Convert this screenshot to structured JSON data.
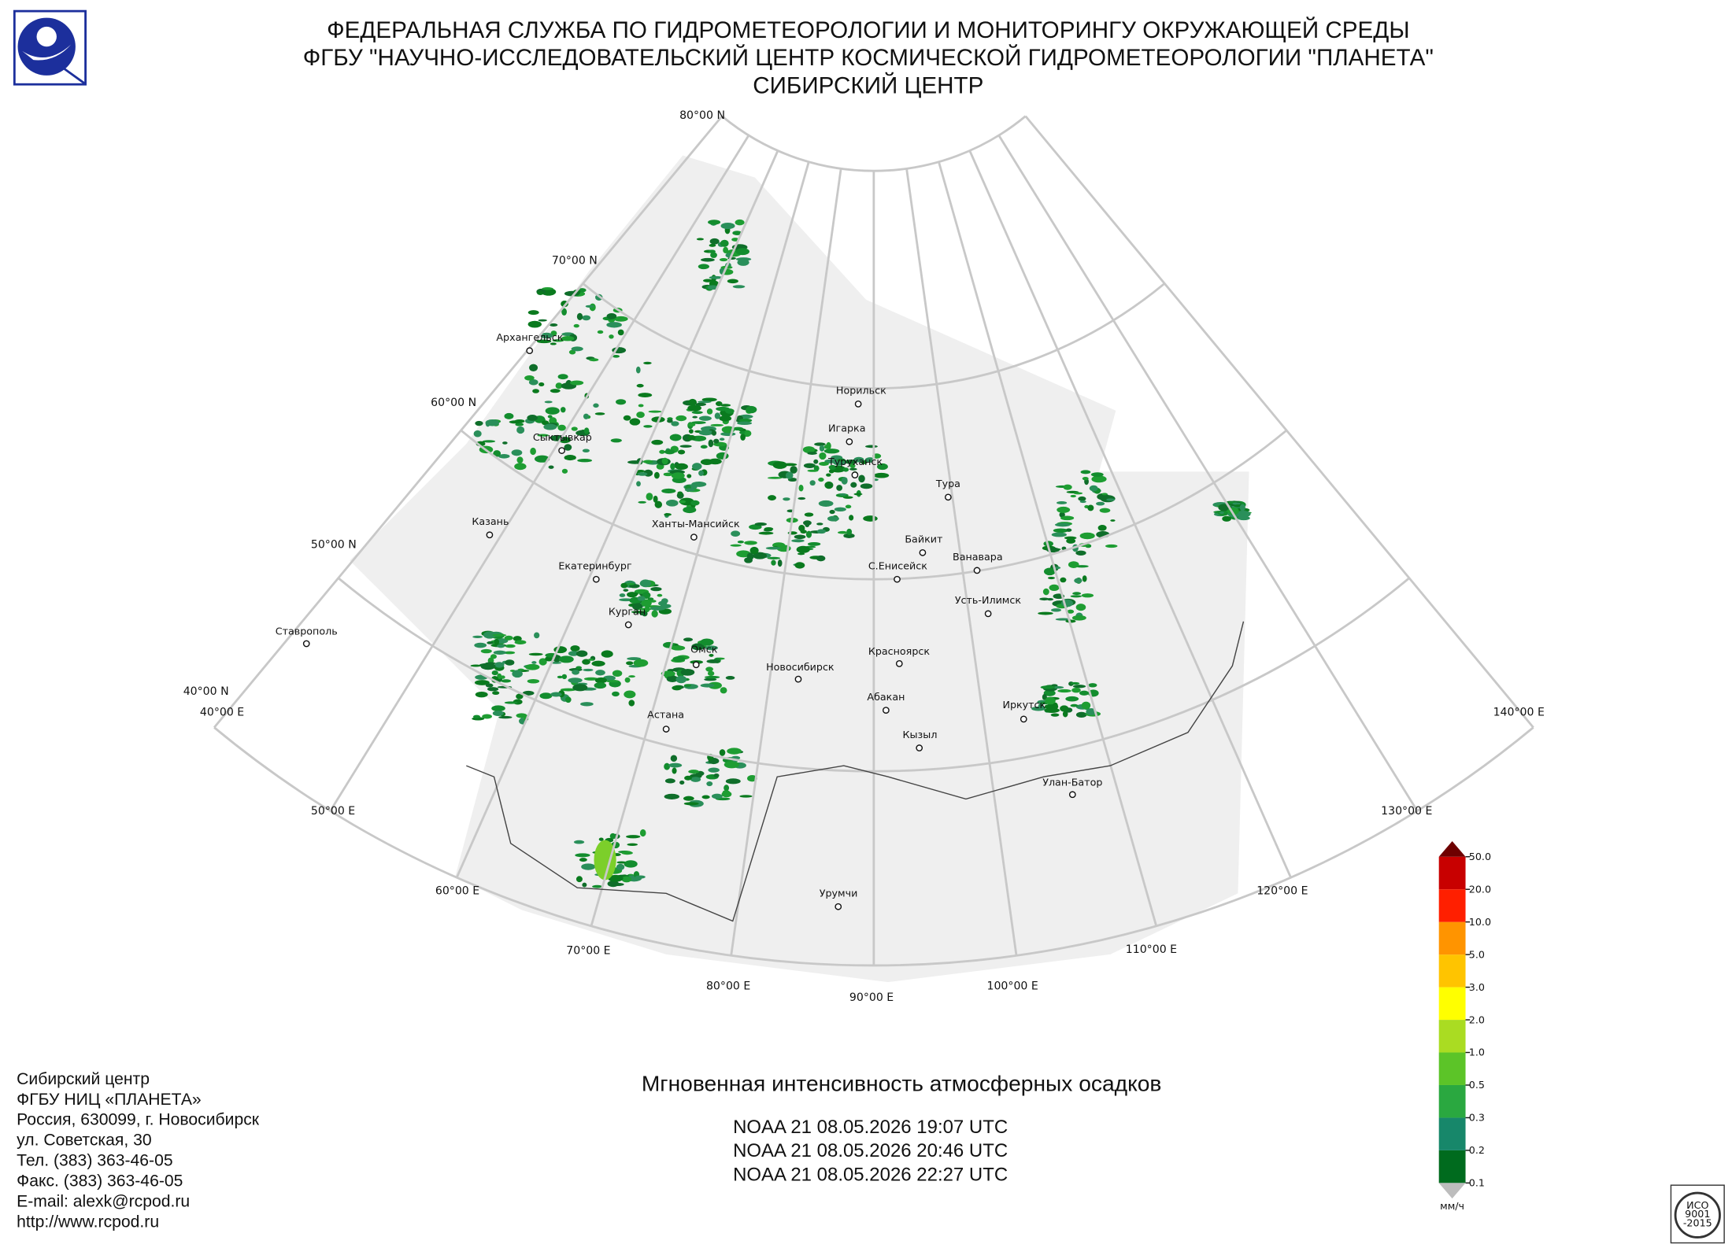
{
  "header": {
    "lines": [
      "ФЕДЕРАЛЬНАЯ СЛУЖБА ПО ГИДРОМЕТЕОРОЛОГИИ И МОНИТОРИНГУ ОКРУЖАЮЩЕЙ СРЕДЫ",
      "ФГБУ \"НАУЧНО-ИССЛЕДОВАТЕЛЬСКИЙ ЦЕНТР КОСМИЧЕСКОЙ ГИДРОМЕТЕОРОЛОГИИ \"ПЛАНЕТА\"",
      "СИБИРСКИЙ ЦЕНТР"
    ]
  },
  "map": {
    "latitude_labels": [
      "80°00 N",
      "70°00 N",
      "60°00 N",
      "50°00 N",
      "40°00 N"
    ],
    "longitude_labels": [
      "40°00 E",
      "50°00 E",
      "60°00 E",
      "70°00 E",
      "80°00 E",
      "90°00 E",
      "100°00 E",
      "110°00 E",
      "120°00 E",
      "130°00 E",
      "140°00 E"
    ],
    "cities": [
      "Архангельск",
      "Сыктывкар",
      "Казань",
      "Екатеринбург",
      "Ставрополь",
      "Курган",
      "Ханты-Мансийск",
      "Омск",
      "Новосибирск",
      "Астана",
      "Норильск",
      "Игарка",
      "Туруханск",
      "Тура",
      "Байкит",
      "Ванавара",
      "С.Енисейск",
      "Усть-Илимск",
      "Красноярск",
      "Абакан",
      "Кызыл",
      "Иркутск",
      "Улан-Батор",
      "Урумчи"
    ]
  },
  "legend": {
    "unit": "мм/ч",
    "ticks": [
      0.1,
      0.2,
      0.3,
      0.5,
      {
        "value": 1.0,
        "label": "1.0"
      },
      {
        "value": 2.0,
        "label": "2.0"
      },
      {
        "value": 3.0,
        "label": "3.0"
      },
      {
        "value": 5.0,
        "label": "5.0"
      },
      {
        "value": 10.0,
        "label": "10.0"
      },
      {
        "value": 20.0,
        "label": "20.0"
      },
      {
        "value": 50.0,
        "label": "50.0"
      }
    ],
    "colors": [
      "#006b1e",
      "#17876a",
      "#2aa840",
      "#5cc428",
      "#aadc22",
      "#ffff00",
      "#ffc400",
      "#ff9400",
      "#ff1f00",
      "#c80000"
    ],
    "over_color": "#6e0000",
    "under_color": "#bdbdbd"
  },
  "product": {
    "title": "Мгновенная интенсивность атмосферных осадков",
    "passes": [
      "NOAA 21 08.05.2026  19:07 UTC",
      "NOAA 21 08.05.2026  20:46 UTC",
      "NOAA 21 08.05.2026  22:27 UTC"
    ]
  },
  "contacts": {
    "lines": [
      "Сибирский центр",
      "ФГБУ НИЦ «ПЛАНЕТА»",
      "Россия, 630099, г. Новосибирск",
      "ул. Советская, 30",
      "Тел. (383) 363-46-05",
      "Факс. (383) 363-46-05",
      "E-mail: alexk@rcpod.ru",
      "http://www.rcpod.ru"
    ]
  },
  "iso_badge": {
    "lines": [
      "ИСО",
      "9001",
      "-2015"
    ]
  }
}
